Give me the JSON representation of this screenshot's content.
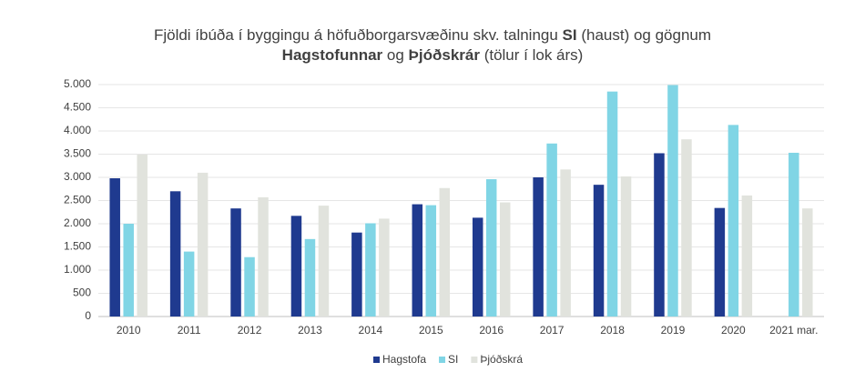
{
  "chart_data": {
    "type": "bar",
    "title": [
      [
        {
          "text": "Fjöldi íbúða í byggingu á höfuðborgarsvæðinu skv. talningu ",
          "bold": false
        },
        {
          "text": "SI",
          "bold": true
        },
        {
          "text": " (haust) og gögnum",
          "bold": false
        }
      ],
      [
        {
          "text": "Hagstofunnar",
          "bold": true
        },
        {
          "text": " og ",
          "bold": false
        },
        {
          "text": "Þjóðskrár",
          "bold": true
        },
        {
          "text": " (tölur í lok árs)",
          "bold": false
        }
      ]
    ],
    "categories": [
      "2010",
      "2011",
      "2012",
      "2013",
      "2014",
      "2015",
      "2016",
      "2017",
      "2018",
      "2019",
      "2020",
      "2021 mar."
    ],
    "series": [
      {
        "name": "Hagstofa",
        "color": "#1f3a8f",
        "values": [
          2980,
          2700,
          2330,
          2170,
          1810,
          2420,
          2130,
          3000,
          2840,
          3520,
          2340,
          null
        ]
      },
      {
        "name": "SI",
        "color": "#80d5e5",
        "values": [
          2000,
          1400,
          1280,
          1670,
          2010,
          2400,
          2960,
          3730,
          4850,
          4990,
          4130,
          3530
        ]
      },
      {
        "name": "Þjóðskrá",
        "color": "#e1e3dd",
        "values": [
          3490,
          3100,
          2570,
          2390,
          2110,
          2770,
          2460,
          3170,
          3020,
          3820,
          2610,
          2330
        ]
      }
    ],
    "ylim": [
      0,
      5000
    ],
    "yticks": [
      0,
      {
        "value": 500,
        "label": "500"
      },
      {
        "value": 1000,
        "label": "1.000"
      },
      {
        "value": 1500,
        "label": "1.500"
      },
      {
        "value": 2000,
        "label": "2.000"
      },
      {
        "value": 2500,
        "label": "2.500"
      },
      {
        "value": 3000,
        "label": "3.000"
      },
      {
        "value": 3500,
        "label": "3.500"
      },
      {
        "value": 4000,
        "label": "4.000"
      },
      {
        "value": 4500,
        "label": "4.500"
      },
      {
        "value": 5000,
        "label": "5.000"
      }
    ],
    "grid": true,
    "legend": "bottom"
  }
}
